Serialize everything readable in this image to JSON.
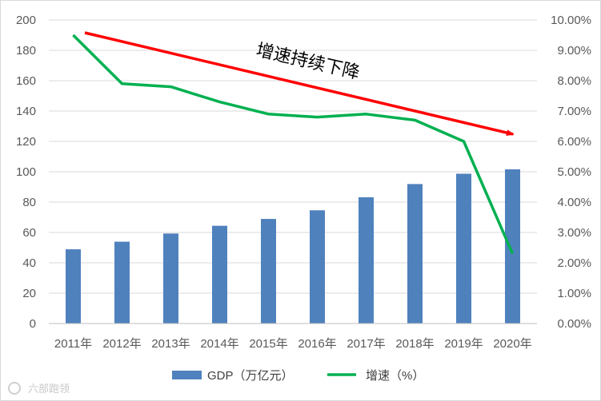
{
  "chart_data": {
    "type": "bar",
    "categories": [
      "2011年",
      "2012年",
      "2013年",
      "2014年",
      "2015年",
      "2016年",
      "2017年",
      "2018年",
      "2019年",
      "2020年"
    ],
    "series": [
      {
        "name": "GDP（万亿元）",
        "type": "bar",
        "axis": "left",
        "color": "#4f81bd",
        "values": [
          48.9,
          53.9,
          59.3,
          64.4,
          68.9,
          74.6,
          83.2,
          91.9,
          98.7,
          101.6
        ]
      },
      {
        "name": "增速（%）",
        "type": "line",
        "axis": "right",
        "color": "#00b050",
        "values": [
          9.5,
          7.9,
          7.8,
          7.3,
          6.9,
          6.8,
          6.9,
          6.7,
          6.0,
          2.3
        ]
      }
    ],
    "y_left": {
      "min": 0,
      "max": 200,
      "step": 20,
      "ticks": [
        "0",
        "20",
        "40",
        "60",
        "80",
        "100",
        "120",
        "140",
        "160",
        "180",
        "200"
      ]
    },
    "y_right": {
      "min": 0,
      "max": 10,
      "step": 1,
      "ticks": [
        "0.00%",
        "1.00%",
        "2.00%",
        "3.00%",
        "4.00%",
        "5.00%",
        "6.00%",
        "7.00%",
        "8.00%",
        "9.00%",
        "10.00%"
      ]
    },
    "grid": true,
    "legend_position": "bottom",
    "annotation": {
      "text": "增速持续下降",
      "arrow_color": "#ff0000"
    }
  },
  "watermark": "六部跑领"
}
